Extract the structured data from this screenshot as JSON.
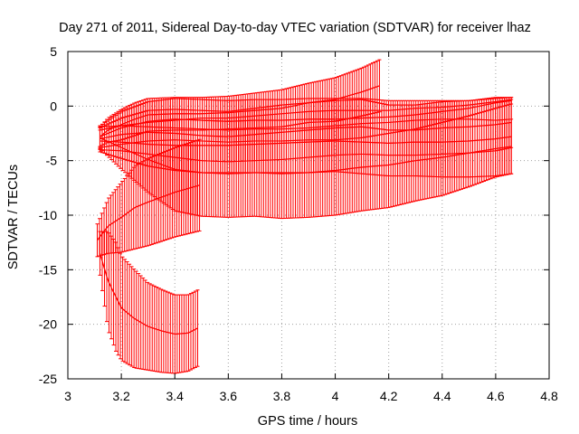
{
  "chart_data": {
    "type": "line",
    "title": "Day 271 of 2011, Sidereal Day-to-day VTEC variation (SDTVAR) for receiver lhaz",
    "xlabel": "GPS time / hours",
    "ylabel": "SDTVAR / TECUs",
    "xlim": [
      3,
      4.8
    ],
    "ylim": [
      -25,
      5
    ],
    "xticks": [
      "3",
      "3.2",
      "3.4",
      "3.6",
      "3.8",
      "4",
      "4.2",
      "4.4",
      "4.6",
      "4.8"
    ],
    "yticks": [
      "5",
      "0",
      "-5",
      "-10",
      "-15",
      "-20",
      "-25"
    ],
    "grid": true,
    "line_color": "#ff0000",
    "grid_color": "#a0a0a0",
    "series": [
      {
        "x": [
          3.12,
          3.15,
          3.2,
          3.25,
          3.3,
          3.4,
          3.5,
          3.6,
          3.7,
          3.8,
          3.9,
          4.0,
          4.1,
          4.17
        ],
        "y": [
          -2.8,
          -2.2,
          -1.7,
          -1.2,
          -0.8,
          -0.7,
          -0.7,
          -0.6,
          -0.4,
          -0.2,
          0.3,
          0.6,
          1.3,
          1.9
        ],
        "err": [
          0.9,
          1.1,
          1.4,
          1.5,
          1.5,
          1.5,
          1.5,
          1.5,
          1.6,
          1.7,
          1.8,
          2.0,
          2.2,
          2.4
        ]
      },
      {
        "x": [
          3.12,
          3.2,
          3.3,
          3.4,
          3.5,
          3.6,
          3.7,
          3.8,
          3.9,
          4.0,
          4.1,
          4.2,
          4.3,
          4.4,
          4.5,
          4.6,
          4.66
        ],
        "y": [
          -2.8,
          -2.0,
          -1.4,
          -1.2,
          -1.3,
          -1.4,
          -1.3,
          -1.3,
          -1.2,
          -1.2,
          -1.1,
          -1.0,
          -0.8,
          -0.5,
          -0.2,
          0.3,
          0.5
        ],
        "err": [
          1.0,
          1.5,
          1.8,
          1.9,
          1.9,
          1.9,
          1.9,
          1.9,
          1.9,
          1.9,
          1.8,
          1.5,
          1.3,
          1.0,
          0.7,
          0.5,
          0.3
        ]
      },
      {
        "x": [
          3.12,
          3.2,
          3.3,
          3.4,
          3.5,
          3.6,
          3.7,
          3.8,
          3.9,
          4.0,
          4.1,
          4.2,
          4.3,
          4.4,
          4.5,
          4.6,
          4.66
        ],
        "y": [
          -3.0,
          -2.6,
          -2.4,
          -2.5,
          -2.7,
          -2.8,
          -2.6,
          -2.4,
          -2.2,
          -2.0,
          -1.9,
          -2.2,
          -2.2,
          -2.0,
          -1.9,
          -1.7,
          -1.5
        ],
        "err": [
          1.0,
          1.5,
          2.0,
          2.2,
          2.3,
          2.3,
          2.4,
          2.5,
          2.5,
          2.5,
          2.5,
          2.3,
          2.3,
          2.4,
          2.4,
          2.4,
          2.3
        ]
      },
      {
        "x": [
          3.12,
          3.2,
          3.3,
          3.4,
          3.5,
          3.6,
          3.7,
          3.8,
          3.9,
          4.0,
          4.1,
          4.2,
          4.3,
          4.4,
          4.5,
          4.6,
          4.66
        ],
        "y": [
          -3.2,
          -3.3,
          -3.5,
          -3.6,
          -3.6,
          -3.6,
          -3.5,
          -3.4,
          -3.3,
          -3.2,
          -3.3,
          -3.4,
          -3.3,
          -3.3,
          -3.2,
          -3.0,
          -2.8
        ],
        "err": [
          1.0,
          1.5,
          2.0,
          2.3,
          2.5,
          2.5,
          2.6,
          2.7,
          2.8,
          2.8,
          2.9,
          3.0,
          3.1,
          3.2,
          3.3,
          3.4,
          3.4
        ]
      },
      {
        "x": [
          3.12,
          3.2,
          3.3,
          3.4,
          3.5,
          3.6,
          3.7,
          3.8,
          3.9,
          4.0,
          4.1,
          4.2,
          4.3,
          4.4,
          4.5,
          4.6,
          4.66
        ],
        "y": [
          -2.9,
          -3.8,
          -4.9,
          -5.8,
          -6.1,
          -6.2,
          -6.1,
          -6.2,
          -6.1,
          -5.9,
          -5.6,
          -5.4,
          -5.0,
          -4.7,
          -4.3,
          -3.9,
          -3.7
        ],
        "err": [
          1.0,
          2.0,
          3.0,
          3.8,
          4.0,
          4.0,
          4.0,
          4.1,
          4.1,
          4.1,
          4.0,
          3.9,
          3.7,
          3.5,
          3.1,
          2.6,
          2.5
        ]
      },
      {
        "x": [
          3.11,
          3.15,
          3.2,
          3.25,
          3.3,
          3.4,
          3.5
        ],
        "y": [
          -12.3,
          -11.0,
          -10.2,
          -9.3,
          -8.8,
          -7.9,
          -7.2
        ],
        "err": [
          1.5,
          2.5,
          3.2,
          3.8,
          4.0,
          4.1,
          4.2
        ]
      },
      {
        "x": [
          3.12,
          3.15,
          3.18,
          3.2,
          3.25,
          3.3,
          3.35,
          3.4,
          3.45,
          3.49
        ],
        "y": [
          -13.5,
          -16.0,
          -17.5,
          -18.5,
          -19.5,
          -20.2,
          -20.6,
          -20.9,
          -20.8,
          -20.3
        ],
        "err": [
          2.0,
          4.5,
          5.0,
          4.8,
          4.5,
          4.0,
          3.8,
          3.6,
          3.5,
          3.5
        ]
      }
    ]
  }
}
